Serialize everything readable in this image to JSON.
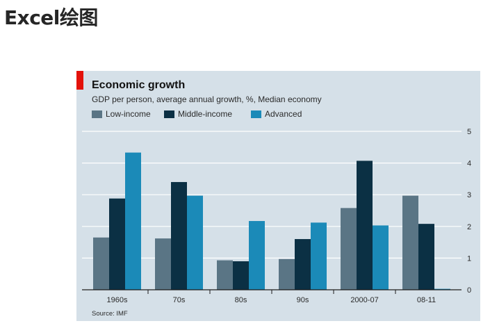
{
  "slide": {
    "title": "Excel绘图"
  },
  "chart_data": {
    "type": "bar",
    "title": "Economic growth",
    "subtitle": "GDP per person, average annual growth, %, Median economy",
    "categories": [
      "1960s",
      "70s",
      "80s",
      "90s",
      "2000-07",
      "08-11"
    ],
    "series": [
      {
        "name": "Low-income",
        "color": "#5a7585",
        "values": [
          1.65,
          1.62,
          0.93,
          0.97,
          2.58,
          2.97
        ]
      },
      {
        "name": "Middle-income",
        "color": "#0b3044",
        "values": [
          2.88,
          3.4,
          0.9,
          1.6,
          4.07,
          2.08
        ]
      },
      {
        "name": "Advanced",
        "color": "#1b8ab8",
        "values": [
          4.33,
          2.97,
          2.17,
          2.12,
          2.03,
          0.03
        ]
      }
    ],
    "yticks": [
      0,
      1,
      2,
      3,
      4,
      5
    ],
    "ylim": [
      0,
      5
    ],
    "y_axis_position": "right",
    "grid": true,
    "legend_position": "top-left",
    "source": "Source: IMF"
  }
}
